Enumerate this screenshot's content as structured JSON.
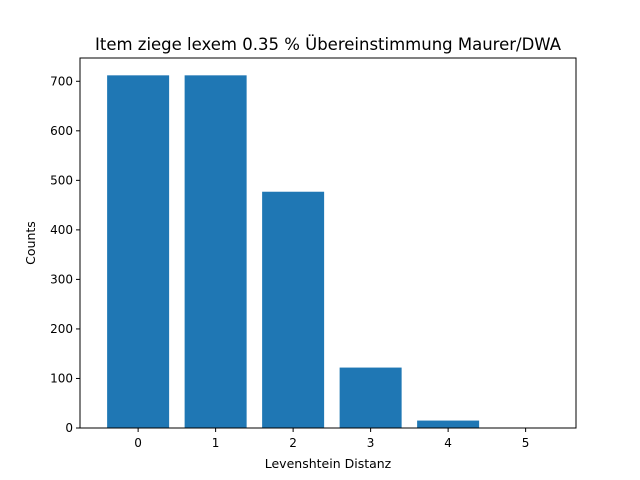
{
  "chart_data": {
    "type": "bar",
    "title": "Item ziege lexem 0.35 % Übereinstimmung Maurer/DWA",
    "xlabel": "Levenshtein Distanz",
    "ylabel": "Counts",
    "categories": [
      "0",
      "1",
      "2",
      "3",
      "4",
      "5"
    ],
    "x": [
      0,
      1,
      2,
      3,
      4,
      5
    ],
    "values": [
      712,
      712,
      477,
      122,
      15,
      1
    ],
    "xlim": [
      -0.75,
      5.65
    ],
    "ylim": [
      0,
      747
    ],
    "yticks": [
      0,
      100,
      200,
      300,
      400,
      500,
      600,
      700
    ],
    "bar_color": "#1f77b4",
    "grid": false,
    "legend": "none"
  }
}
